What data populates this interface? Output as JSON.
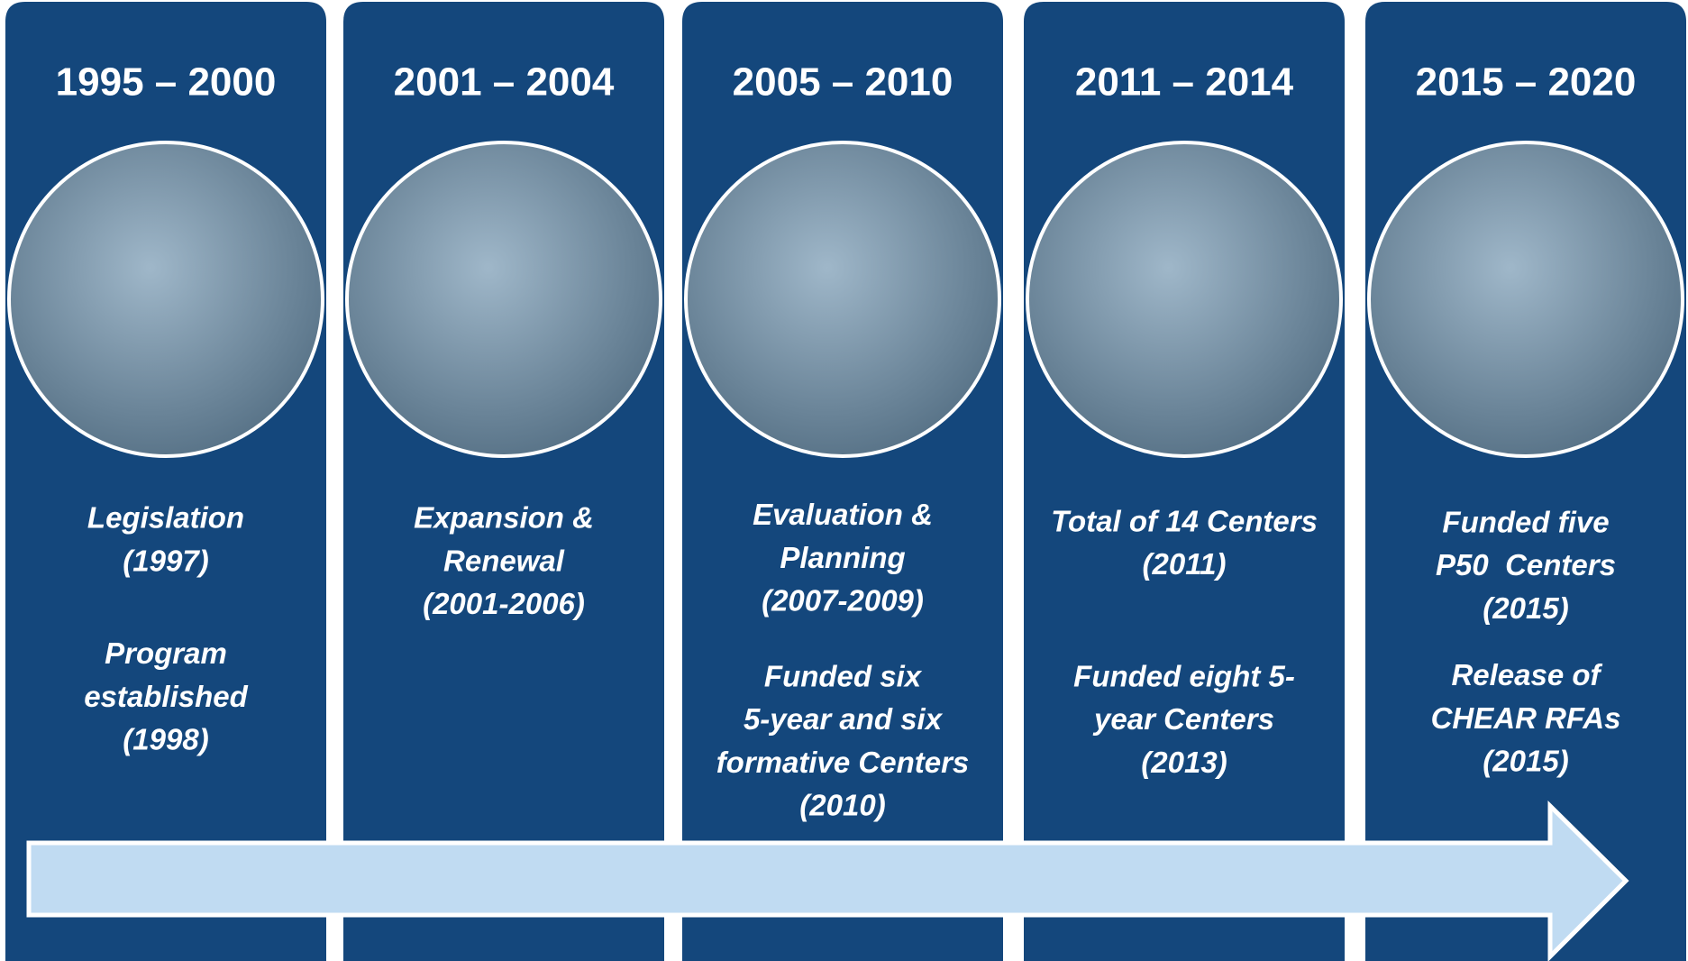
{
  "columns": [
    {
      "period": "1995 – 2000",
      "events": [
        {
          "lines": [
            "Legislation",
            "(1997)"
          ]
        },
        {
          "lines": [
            "Program",
            "established",
            "(1998)"
          ]
        }
      ]
    },
    {
      "period": "2001 – 2004",
      "events": [
        {
          "lines": [
            "Expansion &",
            "Renewal",
            "(2001-2006)"
          ]
        }
      ]
    },
    {
      "period": "2005 – 2010",
      "events": [
        {
          "lines": [
            "Evaluation &",
            "Planning",
            "(2007-2009)"
          ]
        },
        {
          "lines": [
            "Funded six",
            "5-year and six",
            "formative Centers",
            "(2010)"
          ]
        }
      ]
    },
    {
      "period": "2011 – 2014",
      "events": [
        {
          "lines": [
            "Total of 14 Centers",
            "(2011)"
          ]
        },
        {
          "lines": [
            "Funded eight 5-",
            "year Centers",
            "(2013)"
          ]
        }
      ]
    },
    {
      "period": "2015 – 2020",
      "events": [
        {
          "lines": [
            "Funded five",
            "P50  Centers",
            "(2015)"
          ]
        },
        {
          "lines": [
            "Release of",
            "CHEAR RFAs",
            "(2015)"
          ]
        }
      ]
    }
  ]
}
